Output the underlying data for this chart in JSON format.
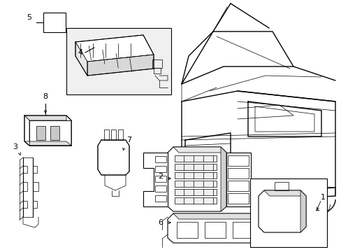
{
  "bg_color": "#ffffff",
  "line_color": "#000000",
  "figsize": [
    4.89,
    3.6
  ],
  "dpi": 100,
  "lw_main": 0.8,
  "lw_thin": 0.5,
  "lw_thick": 1.0
}
